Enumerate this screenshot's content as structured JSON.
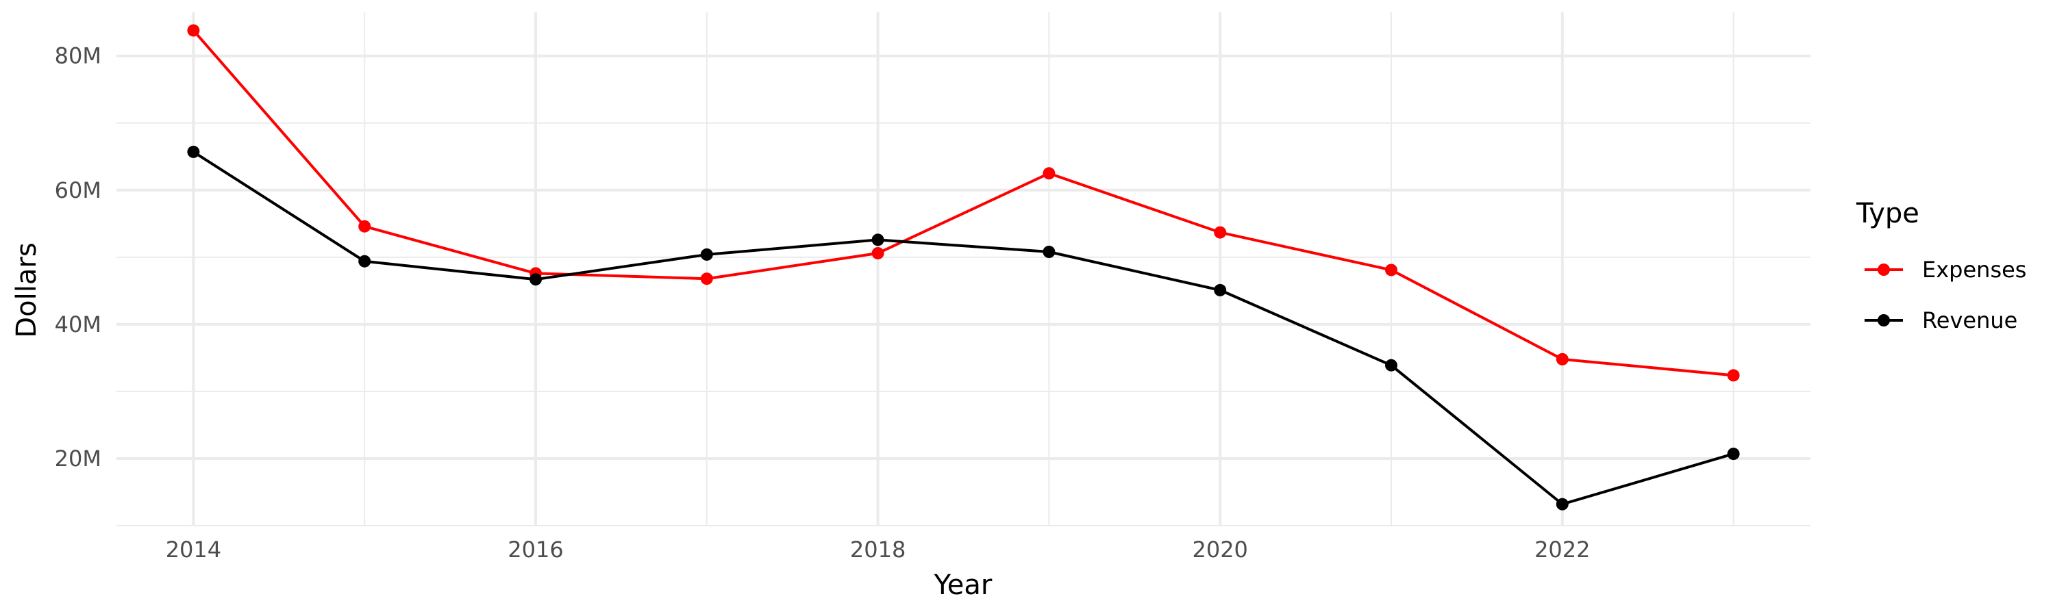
{
  "chart_data": {
    "type": "line",
    "title": "",
    "xlabel": "Year",
    "ylabel": "Dollars",
    "x": [
      2014,
      2015,
      2016,
      2017,
      2018,
      2019,
      2020,
      2021,
      2022,
      2023
    ],
    "xlim": [
      2013.55,
      2023.45
    ],
    "ylim": [
      10000000,
      86500000
    ],
    "x_ticks": [
      2014,
      2016,
      2018,
      2020,
      2022
    ],
    "x_tick_labels": [
      "2014",
      "2016",
      "2018",
      "2020",
      "2022"
    ],
    "y_ticks": [
      20000000,
      40000000,
      60000000,
      80000000
    ],
    "y_tick_labels": [
      "20M",
      "40M",
      "60M",
      "80M"
    ],
    "grid": true,
    "legend": {
      "title": "Type",
      "position": "right"
    },
    "series": [
      {
        "name": "Expenses",
        "color": "#ff0000",
        "values": [
          83800000,
          54600000,
          47600000,
          46800000,
          50600000,
          62500000,
          53700000,
          48100000,
          34800000,
          32400000
        ]
      },
      {
        "name": "Revenue",
        "color": "#000000",
        "values": [
          65700000,
          49400000,
          46700000,
          50400000,
          52600000,
          50800000,
          45100000,
          33900000,
          13200000,
          20700000
        ]
      }
    ]
  }
}
